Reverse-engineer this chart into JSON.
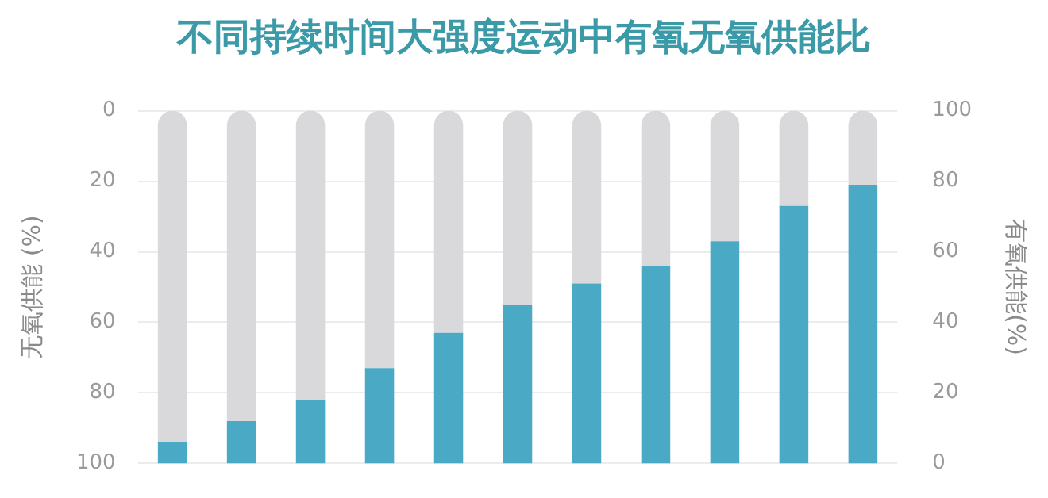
{
  "chart_data": {
    "type": "bar",
    "title": "不同持续时间大强度运动中有氧无氧供能比",
    "ylabel": "无氧供能 (%)",
    "y2label": "有氧供能(%)",
    "categories": [
      null,
      null,
      null,
      null,
      null,
      null,
      null,
      null,
      null,
      null,
      null
    ],
    "series": [
      {
        "color": "#4aa9c4",
        "axis": "y2",
        "values": [
          6,
          12,
          18,
          27,
          37,
          45,
          51,
          56,
          63,
          73,
          79
        ]
      },
      {
        "color": "#d9d8da",
        "axis": "y2",
        "values": [
          94,
          88,
          82,
          73,
          63,
          55,
          49,
          44,
          37,
          27,
          21
        ]
      }
    ],
    "stacked": true,
    "ylim": [
      100,
      0
    ],
    "yticks": [
      0,
      20,
      40,
      60,
      80,
      100
    ],
    "y2lim": [
      0,
      100
    ],
    "y2ticks": [
      0,
      20,
      40,
      60,
      80,
      100
    ],
    "grid": "y",
    "legend": false,
    "tick_labels": "y"
  }
}
